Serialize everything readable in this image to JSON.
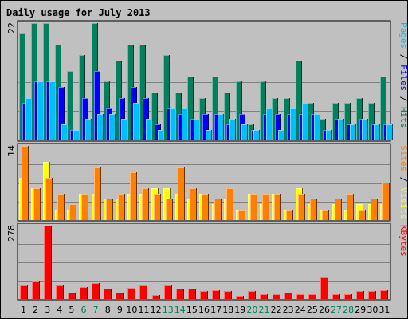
{
  "chart_data": {
    "type": "bar",
    "title": "Daily usage for July 2013",
    "days": [
      "1",
      "2",
      "3",
      "4",
      "5",
      "6",
      "7",
      "8",
      "9",
      "10",
      "11",
      "12",
      "13",
      "14",
      "15",
      "16",
      "17",
      "18",
      "19",
      "20",
      "21",
      "22",
      "23",
      "24",
      "25",
      "26",
      "27",
      "28",
      "29",
      "30",
      "31"
    ],
    "weekend_days": [
      "6",
      "7",
      "13",
      "14",
      "20",
      "21",
      "27",
      "28"
    ],
    "panels": [
      {
        "id": "hits_files_pages",
        "scale_max": 22,
        "scale_label": "22",
        "side_labels": [
          {
            "text": "Pages",
            "color": "#00c0ff"
          },
          {
            "text": " / ",
            "color": "#000000"
          },
          {
            "text": "Files",
            "color": "#0000ff"
          },
          {
            "text": " / ",
            "color": "#000000"
          },
          {
            "text": "Hits",
            "color": "#008040"
          }
        ],
        "series": [
          {
            "name": "Hits",
            "color": "#00805c",
            "values": [
              20,
              22,
              22,
              18,
              13,
              16,
              22,
              11,
              15,
              18,
              18,
              9,
              16,
              9,
              12,
              8,
              12,
              9,
              11,
              3,
              11,
              8,
              8,
              15,
              7,
              4,
              7,
              7,
              8,
              7,
              12
            ]
          },
          {
            "name": "Files",
            "color": "#0000ff",
            "values": [
              7,
              11,
              11,
              10,
              2,
              8,
              13,
              6,
              8,
              10,
              8,
              3,
              6,
              5,
              4,
              5,
              5,
              3,
              5,
              2,
              5,
              5,
              5,
              5,
              5,
              2,
              4,
              3,
              4,
              3,
              3
            ]
          },
          {
            "name": "Pages",
            "color": "#00bfff",
            "values": [
              8,
              11,
              11,
              3,
              2,
              4,
              5,
              5,
              4,
              7,
              4,
              2,
              6,
              6,
              4,
              2,
              5,
              4,
              3,
              2,
              6,
              2,
              6,
              7,
              5,
              2,
              4,
              3,
              4,
              3,
              3
            ]
          }
        ]
      },
      {
        "id": "visits_sites",
        "scale_max": 14,
        "scale_label": "14",
        "side_labels": [
          {
            "text": "Sites",
            "color": "#ff8000"
          },
          {
            "text": " / ",
            "color": "#000000"
          },
          {
            "text": "Visits",
            "color": "#ffff00"
          }
        ],
        "series": [
          {
            "name": "Visits",
            "color": "#ffff00",
            "values": [
              8,
              6,
              11,
              2,
              2,
              5,
              5,
              4,
              4,
              5,
              5,
              6,
              6,
              5,
              4,
              5,
              3,
              4,
              2,
              5,
              3,
              5,
              2,
              6,
              3,
              2,
              3,
              2,
              3,
              3,
              3
            ]
          },
          {
            "name": "Sites",
            "color": "#ff8000",
            "values": [
              14,
              6,
              8,
              5,
              3,
              5,
              10,
              4,
              5,
              9,
              6,
              5,
              4,
              10,
              6,
              5,
              4,
              6,
              2,
              5,
              5,
              5,
              2,
              5,
              4,
              2,
              4,
              5,
              2,
              4,
              7
            ]
          }
        ]
      },
      {
        "id": "kbytes",
        "scale_max": 278,
        "scale_label": "278",
        "side_labels": [
          {
            "text": "KBytes",
            "color": "#ff0000"
          }
        ],
        "series": [
          {
            "name": "KBytes",
            "color": "#ff0000",
            "values": [
              53,
              68,
              278,
              53,
              23,
              45,
              60,
              38,
              23,
              42,
              53,
              15,
              53,
              38,
              38,
              30,
              34,
              30,
              11,
              30,
              19,
              19,
              23,
              19,
              19,
              86,
              19,
              19,
              30,
              30,
              34
            ]
          }
        ]
      }
    ]
  },
  "colors": {
    "background": "#c0c0c0",
    "frame": "#0000ff",
    "title": "#0000ff",
    "weekday_label": "#000000",
    "weekend_label": "#00805c"
  }
}
